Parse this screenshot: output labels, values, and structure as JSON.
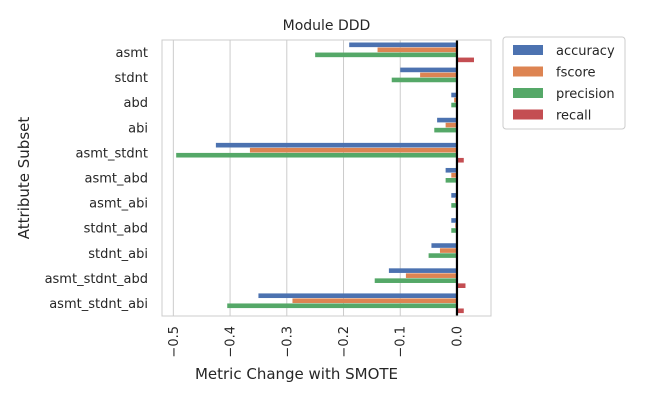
{
  "chart_data": {
    "type": "bar",
    "orientation": "horizontal",
    "title": "Module DDD",
    "xlabel": "Metric Change with SMOTE",
    "ylabel": "Attribute Subset",
    "xlim": [
      -0.52,
      0.06
    ],
    "xticks": [
      -0.5,
      -0.4,
      -0.3,
      -0.2,
      -0.1,
      0.0
    ],
    "xtick_labels": [
      "−0.5",
      "−0.4",
      "−0.3",
      "−0.2",
      "−0.1",
      "0.0"
    ],
    "grid": "vertical",
    "legend_position": "outside-right-top",
    "categories": [
      "asmt",
      "stdnt",
      "abd",
      "abi",
      "asmt_stdnt",
      "asmt_abd",
      "asmt_abi",
      "stdnt_abd",
      "stdnt_abi",
      "asmt_stdnt_abd",
      "asmt_stdnt_abi"
    ],
    "series": [
      {
        "name": "accuracy",
        "color": "#4c72b0",
        "values": [
          -0.19,
          -0.1,
          -0.01,
          -0.035,
          -0.425,
          -0.02,
          -0.01,
          -0.01,
          -0.045,
          -0.12,
          -0.35
        ]
      },
      {
        "name": "fscore",
        "color": "#dd8452",
        "values": [
          -0.14,
          -0.065,
          -0.005,
          -0.02,
          -0.365,
          -0.01,
          -0.003,
          -0.003,
          -0.03,
          -0.09,
          -0.29
        ]
      },
      {
        "name": "precision",
        "color": "#55a868",
        "values": [
          -0.25,
          -0.115,
          -0.01,
          -0.04,
          -0.495,
          -0.02,
          -0.01,
          -0.01,
          -0.05,
          -0.145,
          -0.405
        ]
      },
      {
        "name": "recall",
        "color": "#c44e52",
        "values": [
          0.03,
          0.0,
          0.0,
          0.0,
          0.012,
          0.0,
          0.0,
          0.0,
          0.0,
          0.015,
          0.012
        ]
      }
    ]
  }
}
